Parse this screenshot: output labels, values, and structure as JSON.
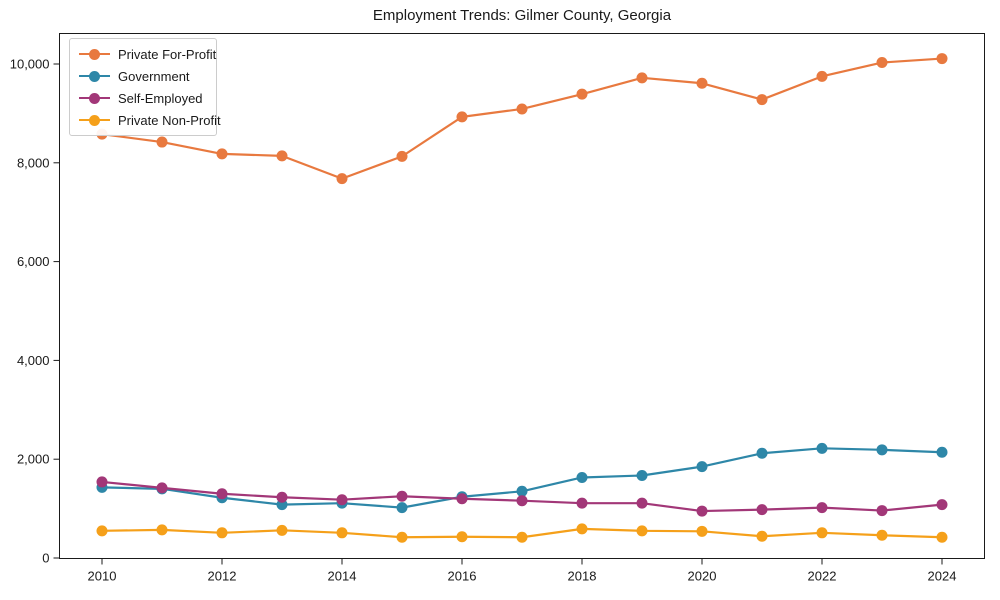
{
  "title": "Employment Trends: Gilmer County, Georgia",
  "chart_data": {
    "type": "line",
    "title": "Employment Trends: Gilmer County, Georgia",
    "xlabel": "",
    "ylabel": "",
    "x": [
      2010,
      2011,
      2012,
      2013,
      2014,
      2015,
      2016,
      2017,
      2018,
      2019,
      2020,
      2021,
      2022,
      2023,
      2024
    ],
    "series": [
      {
        "name": "Private For-Profit",
        "color": "#E8793F",
        "values": [
          8580,
          8420,
          8180,
          8140,
          7680,
          8130,
          8930,
          9090,
          9390,
          9720,
          9610,
          9280,
          9750,
          10030,
          10110
        ]
      },
      {
        "name": "Government",
        "color": "#2E87A8",
        "values": [
          1430,
          1400,
          1220,
          1080,
          1110,
          1020,
          1240,
          1350,
          1630,
          1670,
          1850,
          2120,
          2220,
          2190,
          2140
        ]
      },
      {
        "name": "Self-Employed",
        "color": "#A23778",
        "values": [
          1540,
          1420,
          1300,
          1230,
          1180,
          1250,
          1200,
          1160,
          1110,
          1110,
          950,
          980,
          1020,
          960,
          1080
        ]
      },
      {
        "name": "Private Non-Profit",
        "color": "#F5A01A",
        "values": [
          550,
          570,
          510,
          560,
          510,
          420,
          430,
          420,
          590,
          550,
          540,
          440,
          510,
          460,
          420
        ]
      }
    ],
    "xticks": [
      2010,
      2012,
      2014,
      2016,
      2018,
      2020,
      2022,
      2024
    ],
    "yticks": [
      0,
      2000,
      4000,
      6000,
      8000,
      10000
    ],
    "ytick_labels": [
      "0",
      "2,000",
      "4,000",
      "6,000",
      "8,000",
      "10,000"
    ],
    "ylim": [
      0,
      10630
    ],
    "xlim": [
      2009.3,
      2024.7
    ],
    "grid": false,
    "legend_position": "upper left",
    "marker": "circle",
    "axis_color": "#1a1a1a"
  }
}
